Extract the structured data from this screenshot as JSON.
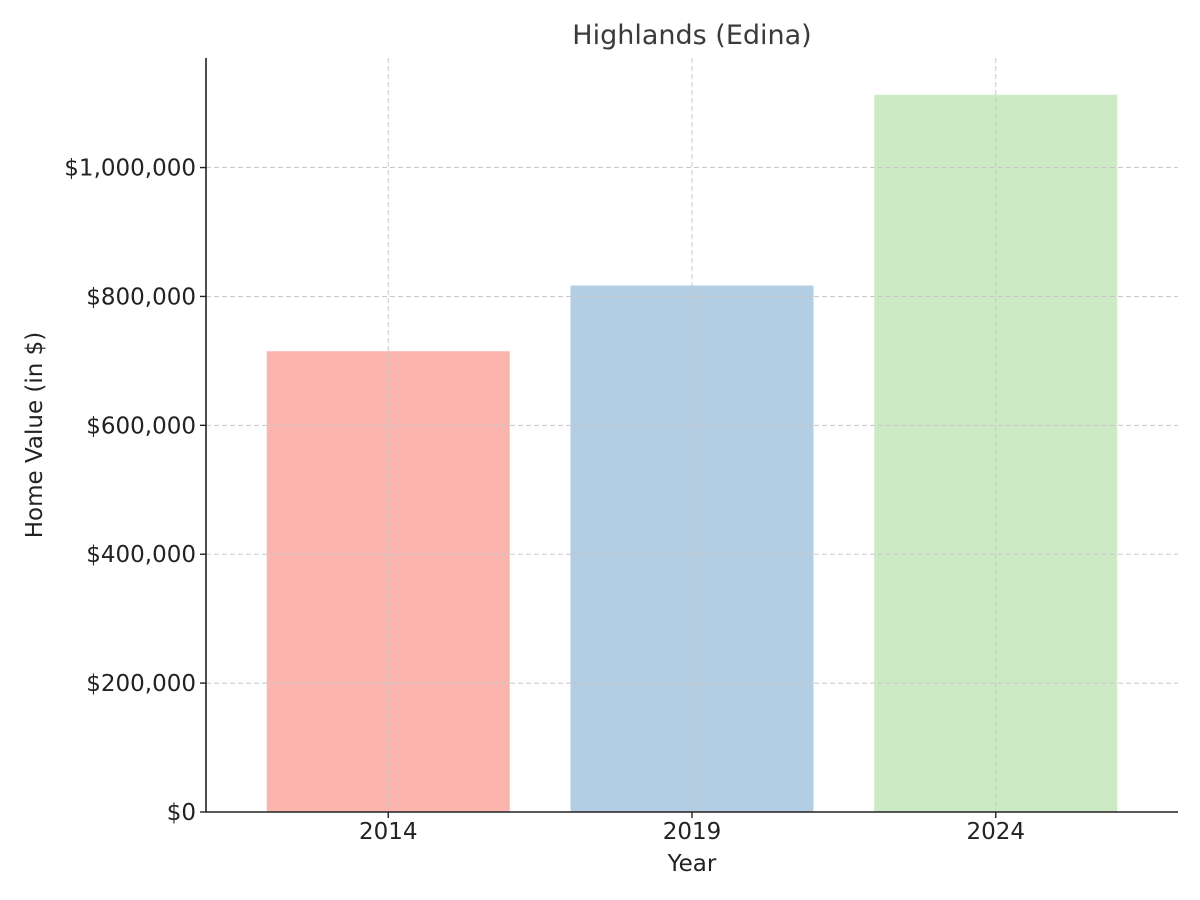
{
  "chart_data": {
    "type": "bar",
    "title": "Highlands (Edina)",
    "xlabel": "Year",
    "ylabel": "Home Value (in $)",
    "categories": [
      "2014",
      "2019",
      "2024"
    ],
    "values": [
      715000,
      817000,
      1113000
    ],
    "colors": [
      "#fbb4ae",
      "#b3cde3",
      "#ccebc5"
    ],
    "ylim": [
      0,
      1170000
    ],
    "yticks": [
      0,
      200000,
      400000,
      600000,
      800000,
      1000000
    ],
    "ytick_labels": [
      "$0",
      "$200,000",
      "$400,000",
      "$600,000",
      "$800,000",
      "$1,000,000"
    ],
    "grid": true,
    "legend": "none"
  }
}
